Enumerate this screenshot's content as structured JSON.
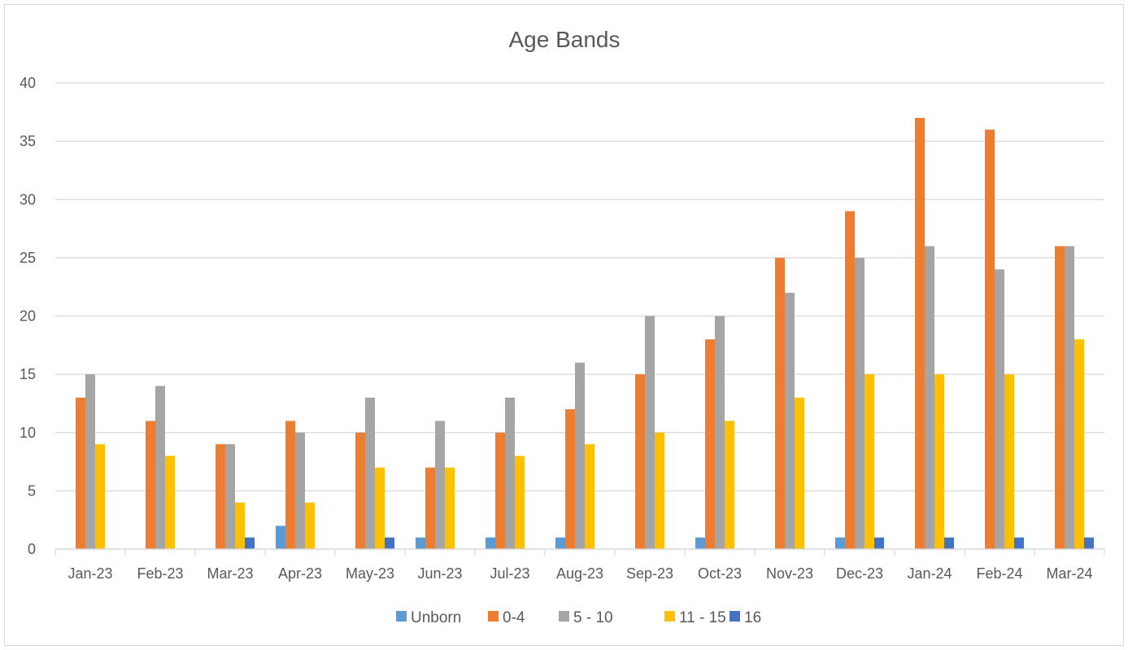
{
  "chart_data": {
    "type": "bar",
    "title": "Age Bands",
    "xlabel": "",
    "ylabel": "",
    "ylim": [
      0,
      40
    ],
    "yticks": [
      0,
      5,
      10,
      15,
      20,
      25,
      30,
      35,
      40
    ],
    "grid": "horizontal",
    "legend_position": "bottom",
    "categories": [
      "Jan-23",
      "Feb-23",
      "Mar-23",
      "Apr-23",
      "May-23",
      "Jun-23",
      "Jul-23",
      "Aug-23",
      "Sep-23",
      "Oct-23",
      "Nov-23",
      "Dec-23",
      "Jan-24",
      "Feb-24",
      "Mar-24"
    ],
    "series": [
      {
        "name": "Unborn",
        "color": "#5B9BD5",
        "values": [
          0,
          0,
          0,
          2,
          0,
          1,
          1,
          1,
          0,
          1,
          0,
          1,
          0,
          0,
          0
        ]
      },
      {
        "name": "0-4",
        "color": "#ED7D31",
        "values": [
          13,
          11,
          9,
          11,
          10,
          7,
          10,
          12,
          15,
          18,
          25,
          29,
          37,
          36,
          26
        ]
      },
      {
        "name": "5 - 10",
        "color": "#A5A5A5",
        "values": [
          15,
          14,
          9,
          10,
          13,
          11,
          13,
          16,
          20,
          20,
          22,
          25,
          26,
          24,
          26
        ]
      },
      {
        "name": "11 - 15",
        "color": "#FFC000",
        "values": [
          9,
          8,
          4,
          4,
          7,
          7,
          8,
          9,
          10,
          11,
          13,
          15,
          15,
          15,
          18
        ]
      },
      {
        "name": "16",
        "color": "#4472C4",
        "values": [
          0,
          0,
          1,
          0,
          1,
          0,
          0,
          0,
          0,
          0,
          0,
          1,
          1,
          1,
          1
        ]
      }
    ],
    "colors": {
      "grid": "#d9d9d9",
      "text": "#595959",
      "axis": "#d9d9d9"
    }
  }
}
